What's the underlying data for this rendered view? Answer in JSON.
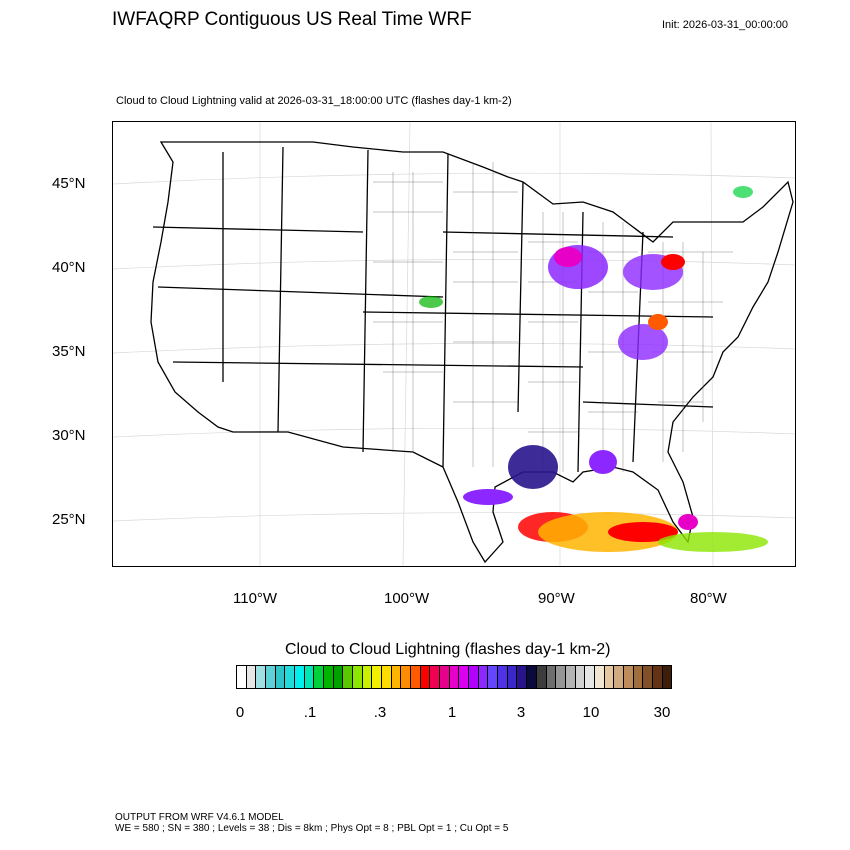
{
  "title": "IWFAQRP Contiguous US Real Time WRF",
  "init": "Init: 2026-03-31_00:00:00",
  "subtitle": "Cloud to Cloud Lightning valid at 2026-03-31_18:00:00 UTC   (flashes day-1 km-2)",
  "lat_labels": [
    "45°N",
    "40°N",
    "35°N",
    "30°N",
    "25°N"
  ],
  "lon_labels": [
    "110°W",
    "100°W",
    "90°W",
    "80°W"
  ],
  "colorbar": {
    "title": "Cloud to Cloud Lightning  (flashes day-1 km-2)",
    "tick_labels": [
      "0",
      ".1",
      ".3",
      "1",
      "3",
      "10",
      "30"
    ],
    "colors": [
      "#ffffff",
      "#e6e6e6",
      "#9ee0e4",
      "#5fd0d6",
      "#2ec4c8",
      "#22dcdc",
      "#00f0f0",
      "#00e6b4",
      "#00d23c",
      "#00b400",
      "#00a000",
      "#58c800",
      "#8ce600",
      "#c8f000",
      "#f0f000",
      "#ffdc00",
      "#ffb400",
      "#ff8c00",
      "#ff5a00",
      "#ff0000",
      "#f00050",
      "#e6008c",
      "#e600c8",
      "#dc00f0",
      "#b400ff",
      "#8c28ff",
      "#6446ff",
      "#5032e6",
      "#3c28c8",
      "#28148c",
      "#0a0a3c",
      "#3c3c3c",
      "#6e6e6e",
      "#969696",
      "#b4b4b4",
      "#d2d2d2",
      "#e6e6e6",
      "#f0e6d2",
      "#e6c8a0",
      "#d2aa82",
      "#be8c5a",
      "#a06e3c",
      "#825028",
      "#643214",
      "#3c1e0a"
    ]
  },
  "footer": {
    "line1": "OUTPUT FROM WRF V4.6.1 MODEL",
    "line2": "WE = 580 ; SN = 380 ; Levels = 38 ; Dis = 8km ; Phys Opt = 8 ; PBL Opt = 1 ; Cu Opt = 5"
  }
}
